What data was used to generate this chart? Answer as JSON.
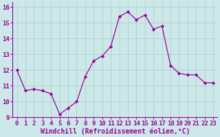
{
  "x": [
    0,
    1,
    2,
    3,
    4,
    5,
    6,
    7,
    8,
    9,
    10,
    11,
    12,
    13,
    14,
    15,
    16,
    17,
    18,
    19,
    20,
    21,
    22,
    23
  ],
  "y": [
    12.0,
    10.7,
    10.8,
    10.7,
    10.5,
    9.2,
    9.6,
    10.0,
    11.6,
    12.6,
    12.9,
    13.5,
    15.4,
    15.7,
    15.2,
    15.5,
    14.6,
    14.8,
    12.3,
    11.8,
    11.7,
    11.7,
    11.2,
    11.2
  ],
  "line_color": "#990099",
  "marker": "D",
  "marker_size": 2.2,
  "bg_color": "#cce8e8",
  "grid_color": "#aacccc",
  "text_color": "#990099",
  "xlabel": "Windchill (Refroidissement éolien,°C)",
  "xlabel_fontsize": 7.0,
  "tick_fontsize": 6.5,
  "xlim": [
    -0.5,
    23.5
  ],
  "ylim": [
    9.0,
    16.3
  ],
  "yticks": [
    9,
    10,
    11,
    12,
    13,
    14,
    15,
    16
  ],
  "xticks": [
    0,
    1,
    2,
    3,
    4,
    5,
    6,
    7,
    8,
    9,
    10,
    11,
    12,
    13,
    14,
    15,
    16,
    17,
    18,
    19,
    20,
    21,
    22,
    23
  ]
}
